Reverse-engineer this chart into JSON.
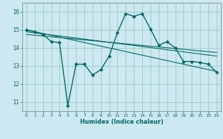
{
  "xlabel": "Humidex (Indice chaleur)",
  "bg_color": "#cce8f0",
  "line_color": "#006666",
  "xlim": [
    -0.5,
    23.5
  ],
  "ylim": [
    10.5,
    16.5
  ],
  "yticks": [
    11,
    12,
    13,
    14,
    15,
    16
  ],
  "xticks": [
    0,
    1,
    2,
    3,
    4,
    5,
    6,
    7,
    8,
    9,
    10,
    11,
    12,
    13,
    14,
    15,
    16,
    17,
    18,
    19,
    20,
    21,
    22,
    23
  ],
  "series1_x": [
    0,
    1,
    2,
    3,
    4,
    5,
    6,
    7,
    8,
    9,
    10,
    11,
    12,
    13,
    14,
    15,
    16,
    17,
    18,
    19,
    20,
    21,
    22,
    23
  ],
  "series1_y": [
    15.0,
    14.9,
    14.75,
    14.35,
    14.3,
    10.8,
    13.1,
    13.1,
    12.5,
    12.8,
    13.55,
    14.85,
    15.9,
    15.75,
    15.9,
    15.05,
    14.15,
    14.35,
    14.0,
    13.25,
    13.25,
    13.2,
    13.1,
    12.65
  ],
  "trend1_x": [
    0,
    23
  ],
  "trend1_y": [
    15.0,
    12.7
  ],
  "trend2_x": [
    0,
    23
  ],
  "trend2_y": [
    14.9,
    13.55
  ],
  "trend3_x": [
    0,
    23
  ],
  "trend3_y": [
    14.75,
    13.75
  ],
  "grid_color": "#99ccbb",
  "marker": "D",
  "marker_size": 2.5,
  "line_width": 1.0
}
